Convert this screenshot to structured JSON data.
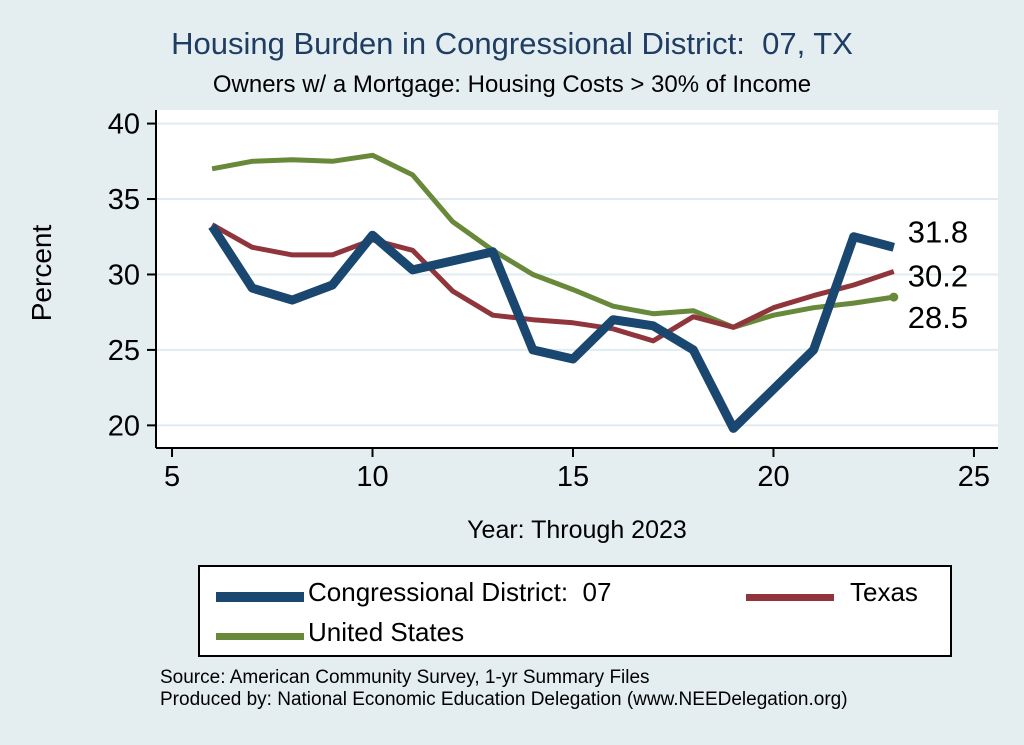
{
  "title": "Housing Burden in Congressional District:  07, TX",
  "subtitle": "Owners w/ a Mortgage: Housing Costs > 30% of Income",
  "chart_data": {
    "type": "line",
    "title": "Housing Burden in Congressional District:  07, TX",
    "subtitle": "Owners w/ a Mortgage: Housing Costs > 30% of Income",
    "xlabel": "Year: Through 2023",
    "ylabel": "Percent",
    "xlim": [
      4.6,
      25.6
    ],
    "ylim": [
      18.5,
      40.9
    ],
    "x_ticks": [
      5,
      10,
      15,
      20,
      25
    ],
    "y_ticks": [
      20,
      25,
      30,
      35,
      40
    ],
    "grid": "horizontal",
    "legend_position": "bottom",
    "x": [
      6,
      7,
      8,
      9,
      10,
      11,
      12,
      13,
      14,
      15,
      16,
      17,
      18,
      19,
      20,
      21,
      22,
      23
    ],
    "series": [
      {
        "name": "Congressional District:  07",
        "color": "#1a476f",
        "line_width": 9,
        "end_label": "31.8",
        "end_marker": false,
        "values": [
          33.2,
          29.1,
          28.3,
          29.3,
          32.6,
          30.3,
          30.9,
          31.5,
          25.0,
          24.4,
          27.0,
          26.6,
          25.0,
          19.8,
          22.4,
          25.0,
          32.5,
          31.8
        ]
      },
      {
        "name": "Texas",
        "color": "#90353b",
        "line_width": 5,
        "end_label": "30.2",
        "end_marker": false,
        "values": [
          33.3,
          31.8,
          31.3,
          31.3,
          32.3,
          31.6,
          28.9,
          27.3,
          27.0,
          26.8,
          26.4,
          25.6,
          27.2,
          26.5,
          27.8,
          28.6,
          29.3,
          30.2
        ]
      },
      {
        "name": "United States",
        "color": "#68883a",
        "line_width": 5,
        "end_label": "28.5",
        "end_marker": true,
        "values": [
          37.0,
          37.5,
          37.6,
          37.5,
          37.9,
          36.6,
          33.5,
          31.6,
          30.0,
          29.0,
          27.9,
          27.4,
          27.6,
          26.5,
          27.3,
          27.8,
          28.1,
          28.5
        ]
      }
    ]
  },
  "footer": {
    "line1": "Source: American Community Survey, 1-yr Summary Files",
    "line2": "Produced by: National Economic Education Delegation (www.NEEDelegation.org)"
  }
}
